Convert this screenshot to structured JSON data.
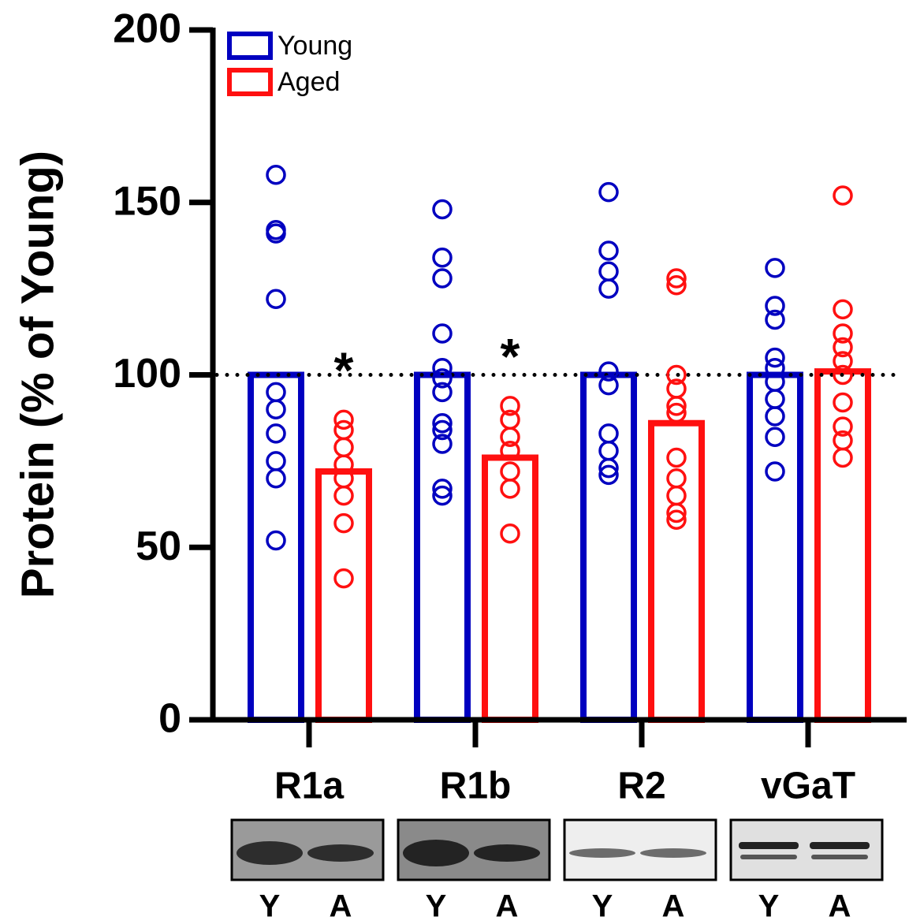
{
  "chart_data": {
    "type": "bar",
    "y_label": "Protein (% of Young)",
    "categories": [
      "R1a",
      "R1b",
      "R2",
      "vGaT"
    ],
    "series": [
      {
        "name": "Young",
        "color": "#0000c0",
        "values": [
          100,
          100,
          100,
          100
        ],
        "points": [
          [
            158,
            142,
            141,
            122,
            95,
            90,
            83,
            75,
            70,
            52
          ],
          [
            148,
            134,
            128,
            112,
            102,
            99,
            95,
            86,
            84,
            80,
            67,
            65
          ],
          [
            153,
            136,
            130,
            125,
            101,
            97,
            83,
            78,
            73,
            71
          ],
          [
            131,
            120,
            116,
            105,
            102,
            98,
            93,
            88,
            82,
            72
          ]
        ]
      },
      {
        "name": "Aged",
        "color": "#ff1010",
        "values": [
          72,
          76,
          86,
          101
        ],
        "points": [
          [
            87,
            84,
            79,
            74,
            70,
            65,
            57,
            41
          ],
          [
            91,
            87,
            82,
            78,
            72,
            67,
            54
          ],
          [
            128,
            126,
            100,
            96,
            91,
            89,
            76,
            70,
            65,
            60,
            58
          ],
          [
            152,
            119,
            112,
            108,
            104,
            100,
            92,
            85,
            81,
            76
          ]
        ]
      }
    ],
    "annotations": [
      {
        "text": "*",
        "category": 0
      },
      {
        "text": "*",
        "category": 1
      }
    ],
    "reference_line": 100,
    "ylim": [
      0,
      200
    ],
    "yticks": [
      0,
      50,
      100,
      150,
      200
    ],
    "lane_labels": [
      "Y",
      "A"
    ]
  }
}
